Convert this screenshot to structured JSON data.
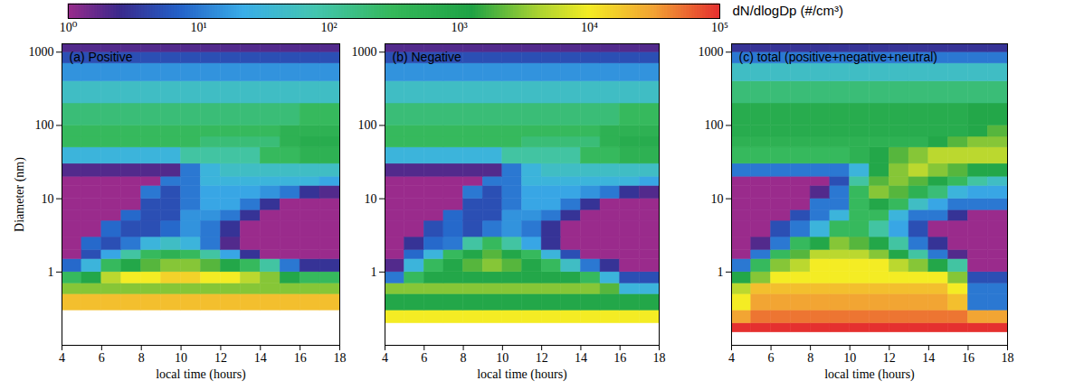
{
  "colorbar": {
    "label": "dN/dlogDp (#/cm³)",
    "range": [
      1,
      100000
    ],
    "ticks": [
      {
        "value": 1,
        "label": "10⁰"
      },
      {
        "value": 10,
        "label": "10¹"
      },
      {
        "value": 100,
        "label": "10²"
      },
      {
        "value": 1000,
        "label": "10³"
      },
      {
        "value": 10000,
        "label": "10⁴"
      },
      {
        "value": 100000,
        "label": "10⁵"
      }
    ]
  },
  "chart_data": [
    {
      "type": "heatmap",
      "title": "(a) Positive",
      "xlabel": "local time (hours)",
      "ylabel": "Diameter (nm)",
      "xlim": [
        4,
        18
      ],
      "xticks": [
        4,
        6,
        8,
        10,
        12,
        14,
        16,
        18
      ],
      "ylim": [
        0.1,
        1300
      ],
      "yticks": [
        1,
        10,
        100,
        1000
      ],
      "log": "y",
      "x_bins": [
        4,
        5,
        6,
        7,
        8,
        9,
        10,
        11,
        12,
        13,
        14,
        15,
        16,
        17,
        18
      ],
      "y_bins": [
        0.15,
        0.2,
        0.3,
        0.5,
        0.7,
        1,
        1.5,
        2,
        3,
        5,
        7,
        10,
        15,
        20,
        30,
        50,
        70,
        100,
        200,
        400,
        700,
        1000,
        1300
      ],
      "cells": [
        [
          null,
          null,
          null,
          null,
          null,
          null,
          null,
          null,
          null,
          null,
          null,
          null,
          null,
          null
        ],
        [
          null,
          null,
          null,
          null,
          null,
          null,
          null,
          null,
          null,
          null,
          null,
          null,
          null,
          null
        ],
        [
          20000,
          20000,
          20000,
          20000,
          20000,
          20000,
          20000,
          20000,
          20000,
          20000,
          20000,
          20000,
          20000,
          20000
        ],
        [
          3000,
          3000,
          3000,
          3000,
          3000,
          3000,
          3000,
          3000,
          3000,
          3000,
          3000,
          3000,
          3000,
          3000
        ],
        [
          300,
          1000,
          5000,
          10000,
          10000,
          15000,
          15000,
          10000,
          10000,
          5000,
          3000,
          1000,
          300,
          300
        ],
        [
          8,
          30,
          300,
          1000,
          2000,
          3000,
          3000,
          2000,
          1000,
          300,
          100,
          10,
          3,
          3
        ],
        [
          1,
          5,
          20,
          100,
          300,
          500,
          300,
          100,
          20,
          3,
          1,
          1,
          1,
          1
        ],
        [
          1,
          8,
          5,
          10,
          30,
          50,
          30,
          10,
          2,
          1,
          1,
          1,
          1,
          1
        ],
        [
          1,
          1,
          8,
          5,
          5,
          8,
          15,
          10,
          3,
          1,
          1,
          1,
          1,
          1
        ],
        [
          1,
          1,
          1,
          8,
          5,
          5,
          15,
          15,
          10,
          3,
          1,
          1,
          1,
          1
        ],
        [
          1,
          1,
          1,
          1,
          5,
          5,
          10,
          20,
          20,
          10,
          3,
          1,
          1,
          1
        ],
        [
          1,
          1,
          1,
          1,
          10,
          5,
          10,
          20,
          20,
          20,
          15,
          10,
          3,
          2
        ],
        [
          1,
          1,
          1,
          1,
          1,
          10,
          10,
          30,
          30,
          30,
          30,
          30,
          30,
          20
        ],
        [
          2,
          2,
          2,
          2,
          2,
          2,
          10,
          30,
          50,
          50,
          50,
          50,
          50,
          50
        ],
        [
          30,
          30,
          30,
          30,
          30,
          30,
          100,
          100,
          100,
          100,
          300,
          300,
          500,
          500
        ],
        [
          300,
          300,
          300,
          300,
          300,
          300,
          300,
          200,
          200,
          200,
          200,
          500,
          700,
          700
        ],
        [
          300,
          300,
          300,
          300,
          300,
          300,
          300,
          300,
          300,
          300,
          300,
          500,
          500,
          500
        ],
        [
          200,
          200,
          200,
          200,
          200,
          200,
          200,
          200,
          200,
          200,
          200,
          200,
          300,
          300
        ],
        [
          50,
          50,
          50,
          50,
          50,
          50,
          50,
          50,
          50,
          50,
          50,
          50,
          50,
          50
        ],
        [
          15,
          15,
          15,
          15,
          15,
          15,
          15,
          15,
          15,
          15,
          15,
          15,
          15,
          15
        ],
        [
          5,
          5,
          5,
          5,
          5,
          5,
          5,
          5,
          5,
          5,
          5,
          5,
          5,
          5
        ],
        [
          2,
          2,
          2,
          2,
          2,
          2,
          2,
          2,
          2,
          2,
          2,
          2,
          2,
          2
        ]
      ]
    },
    {
      "type": "heatmap",
      "title": "(b) Negative",
      "xlabel": "local time (hours)",
      "xlim": [
        4,
        18
      ],
      "xticks": [
        4,
        6,
        8,
        10,
        12,
        14,
        16,
        18
      ],
      "ylim": [
        0.1,
        1300
      ],
      "yticks": [
        1,
        10,
        100,
        1000
      ],
      "log": "y",
      "x_bins": [
        4,
        5,
        6,
        7,
        8,
        9,
        10,
        11,
        12,
        13,
        14,
        15,
        16,
        17,
        18
      ],
      "y_bins": [
        0.15,
        0.2,
        0.3,
        0.5,
        0.7,
        1,
        1.5,
        2,
        3,
        5,
        7,
        10,
        15,
        20,
        30,
        50,
        70,
        100,
        200,
        400,
        700,
        1000,
        1300
      ],
      "cells": [
        [
          null,
          null,
          null,
          null,
          null,
          null,
          null,
          null,
          null,
          null,
          null,
          null,
          null,
          null
        ],
        [
          10000,
          10000,
          10000,
          10000,
          10000,
          10000,
          10000,
          10000,
          10000,
          10000,
          10000,
          10000,
          10000,
          10000
        ],
        [
          1000,
          1000,
          1000,
          1000,
          1000,
          1000,
          1000,
          1000,
          1000,
          1000,
          1000,
          1000,
          1000,
          1000
        ],
        [
          3000,
          3000,
          3000,
          3000,
          3000,
          3000,
          3000,
          3000,
          3000,
          3000,
          3000,
          2000,
          30,
          30
        ],
        [
          10,
          300,
          1000,
          1000,
          1000,
          1000,
          1000,
          1000,
          1000,
          1000,
          300,
          30,
          5,
          5
        ],
        [
          2,
          30,
          300,
          1000,
          2000,
          3000,
          2000,
          1000,
          300,
          50,
          10,
          3,
          1,
          1
        ],
        [
          1,
          8,
          30,
          300,
          1000,
          2000,
          1000,
          300,
          30,
          5,
          1,
          1,
          1,
          1
        ],
        [
          1,
          3,
          8,
          10,
          100,
          300,
          100,
          20,
          3,
          1,
          1,
          1,
          1,
          1
        ],
        [
          1,
          1,
          5,
          8,
          5,
          10,
          15,
          10,
          3,
          1,
          1,
          1,
          1,
          1
        ],
        [
          1,
          1,
          1,
          8,
          5,
          5,
          15,
          15,
          10,
          3,
          1,
          1,
          1,
          1
        ],
        [
          1,
          1,
          1,
          1,
          5,
          5,
          10,
          20,
          20,
          10,
          3,
          1,
          1,
          1
        ],
        [
          1,
          1,
          1,
          1,
          10,
          5,
          10,
          20,
          20,
          20,
          15,
          10,
          3,
          2
        ],
        [
          1,
          1,
          1,
          1,
          1,
          10,
          10,
          30,
          30,
          30,
          30,
          30,
          30,
          20
        ],
        [
          2,
          2,
          2,
          2,
          2,
          2,
          10,
          30,
          50,
          50,
          50,
          50,
          50,
          50
        ],
        [
          30,
          30,
          30,
          30,
          30,
          30,
          100,
          100,
          100,
          100,
          300,
          300,
          500,
          500
        ],
        [
          300,
          300,
          300,
          300,
          300,
          300,
          300,
          200,
          200,
          200,
          200,
          500,
          700,
          700
        ],
        [
          300,
          300,
          300,
          300,
          300,
          300,
          300,
          300,
          300,
          300,
          300,
          500,
          500,
          500
        ],
        [
          200,
          200,
          200,
          200,
          200,
          200,
          200,
          200,
          200,
          200,
          200,
          200,
          300,
          300
        ],
        [
          50,
          50,
          50,
          50,
          50,
          50,
          50,
          50,
          50,
          50,
          50,
          50,
          50,
          50
        ],
        [
          15,
          15,
          15,
          15,
          15,
          15,
          15,
          15,
          15,
          15,
          15,
          15,
          15,
          15
        ],
        [
          5,
          5,
          5,
          5,
          5,
          5,
          5,
          5,
          5,
          5,
          5,
          5,
          5,
          5
        ],
        [
          2,
          2,
          2,
          2,
          2,
          2,
          2,
          2,
          2,
          2,
          2,
          2,
          2,
          2
        ]
      ]
    },
    {
      "type": "heatmap",
      "title": "(c) total (positive+negative+neutral)",
      "xlabel": "local time (hours)",
      "xlim": [
        4,
        18
      ],
      "xticks": [
        4,
        6,
        8,
        10,
        12,
        14,
        16,
        18
      ],
      "ylim": [
        0.1,
        1300
      ],
      "yticks": [
        1,
        10,
        100,
        1000
      ],
      "log": "y",
      "x_bins": [
        4,
        5,
        6,
        7,
        8,
        9,
        10,
        11,
        12,
        13,
        14,
        15,
        16,
        17,
        18
      ],
      "y_bins": [
        0.15,
        0.2,
        0.3,
        0.5,
        0.7,
        1,
        1.5,
        2,
        3,
        5,
        7,
        10,
        15,
        20,
        30,
        50,
        70,
        100,
        200,
        400,
        700,
        1000,
        1300
      ],
      "cells": [
        [
          100000,
          100000,
          100000,
          100000,
          100000,
          100000,
          100000,
          100000,
          100000,
          100000,
          100000,
          100000,
          100000,
          100000
        ],
        [
          30000,
          50000,
          50000,
          50000,
          50000,
          50000,
          50000,
          50000,
          50000,
          50000,
          50000,
          50000,
          30000,
          30000
        ],
        [
          10000,
          30000,
          30000,
          30000,
          30000,
          30000,
          30000,
          30000,
          30000,
          30000,
          30000,
          20000,
          10,
          10
        ],
        [
          5000,
          20000,
          20000,
          20000,
          20000,
          20000,
          20000,
          20000,
          20000,
          20000,
          20000,
          10000,
          10,
          10
        ],
        [
          1000,
          3000,
          10000,
          10000,
          10000,
          10000,
          10000,
          10000,
          10000,
          10000,
          10000,
          3000,
          5,
          5
        ],
        [
          10,
          300,
          3000,
          5000,
          10000,
          10000,
          10000,
          10000,
          5000,
          3000,
          1000,
          100,
          1,
          1
        ],
        [
          1,
          10,
          300,
          2000,
          5000,
          5000,
          5000,
          3000,
          1000,
          100,
          10,
          2,
          1,
          1
        ],
        [
          1,
          2,
          10,
          300,
          1000,
          3000,
          2000,
          1000,
          100,
          10,
          3,
          1,
          1,
          1
        ],
        [
          1,
          1,
          5,
          10,
          30,
          300,
          300,
          100,
          20,
          5,
          1,
          1,
          1,
          1
        ],
        [
          1,
          1,
          1,
          5,
          10,
          30,
          300,
          300,
          30,
          10,
          10,
          3,
          1,
          1
        ],
        [
          1,
          1,
          1,
          1,
          10,
          10,
          300,
          1000,
          300,
          50,
          20,
          10,
          10,
          10
        ],
        [
          1,
          1,
          1,
          1,
          2,
          10,
          300,
          3000,
          2000,
          500,
          200,
          30,
          20,
          20
        ],
        [
          1,
          1,
          1,
          1,
          1,
          5,
          100,
          2000,
          3000,
          2000,
          1000,
          300,
          100,
          50
        ],
        [
          10,
          10,
          10,
          10,
          10,
          10,
          30,
          1000,
          3000,
          5000,
          3000,
          2000,
          1000,
          1000
        ],
        [
          300,
          300,
          300,
          300,
          300,
          300,
          500,
          1000,
          2000,
          3000,
          5000,
          5000,
          5000,
          5000
        ],
        [
          500,
          500,
          500,
          500,
          500,
          500,
          500,
          500,
          500,
          500,
          1000,
          2000,
          3000,
          3000
        ],
        [
          700,
          700,
          700,
          700,
          700,
          700,
          700,
          700,
          700,
          700,
          700,
          700,
          1000,
          2000
        ],
        [
          700,
          700,
          700,
          700,
          700,
          700,
          700,
          700,
          700,
          700,
          700,
          700,
          1000,
          1000
        ],
        [
          200,
          200,
          200,
          200,
          200,
          200,
          200,
          200,
          200,
          200,
          200,
          200,
          200,
          200
        ],
        [
          50,
          50,
          50,
          50,
          50,
          50,
          50,
          50,
          50,
          50,
          50,
          50,
          50,
          50
        ],
        [
          10,
          10,
          10,
          10,
          10,
          10,
          10,
          10,
          10,
          10,
          10,
          10,
          10,
          10
        ],
        [
          3,
          3,
          3,
          3,
          3,
          3,
          3,
          3,
          3,
          3,
          3,
          3,
          3,
          3
        ]
      ]
    }
  ]
}
